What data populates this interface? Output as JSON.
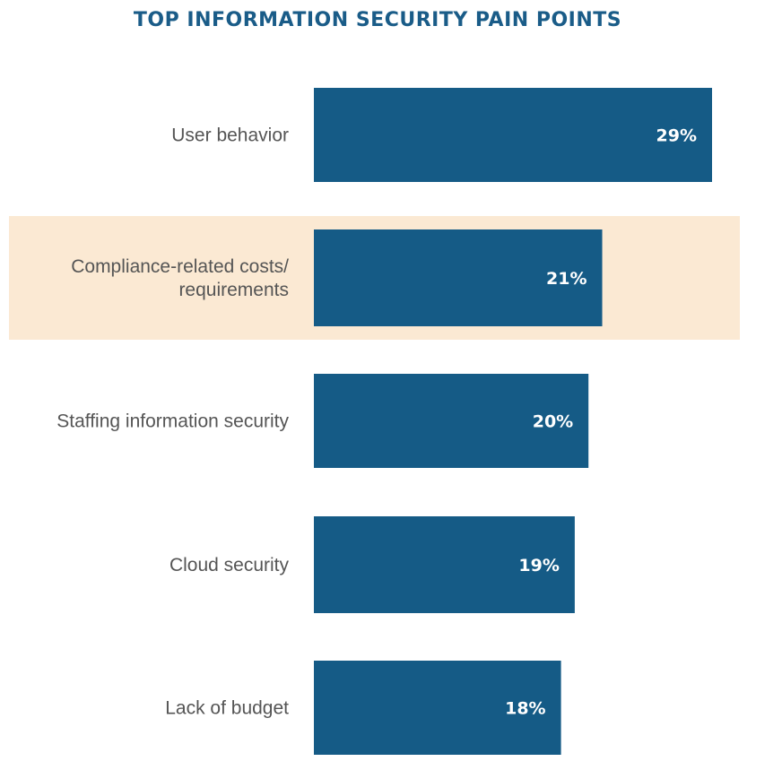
{
  "chart_data": {
    "type": "bar",
    "orientation": "horizontal",
    "title": "TOP INFORMATION SECURITY PAIN POINTS",
    "categories": [
      [
        "User behavior"
      ],
      [
        "Compliance-related costs/",
        "requirements"
      ],
      [
        "Staffing information security"
      ],
      [
        "Cloud security"
      ],
      [
        "Lack of budget"
      ]
    ],
    "values": [
      29,
      21,
      20,
      19,
      18
    ],
    "value_labels": [
      "29%",
      "21%",
      "20%",
      "19%",
      "18%"
    ],
    "highlighted_category_index": 1,
    "grid": false,
    "legend": "none",
    "colors": {
      "bar": "#155b86",
      "highlight_band": "#fbe9d3",
      "title": "#1a5c88",
      "category_text": "#555555",
      "value_text": "#ffffff"
    }
  }
}
